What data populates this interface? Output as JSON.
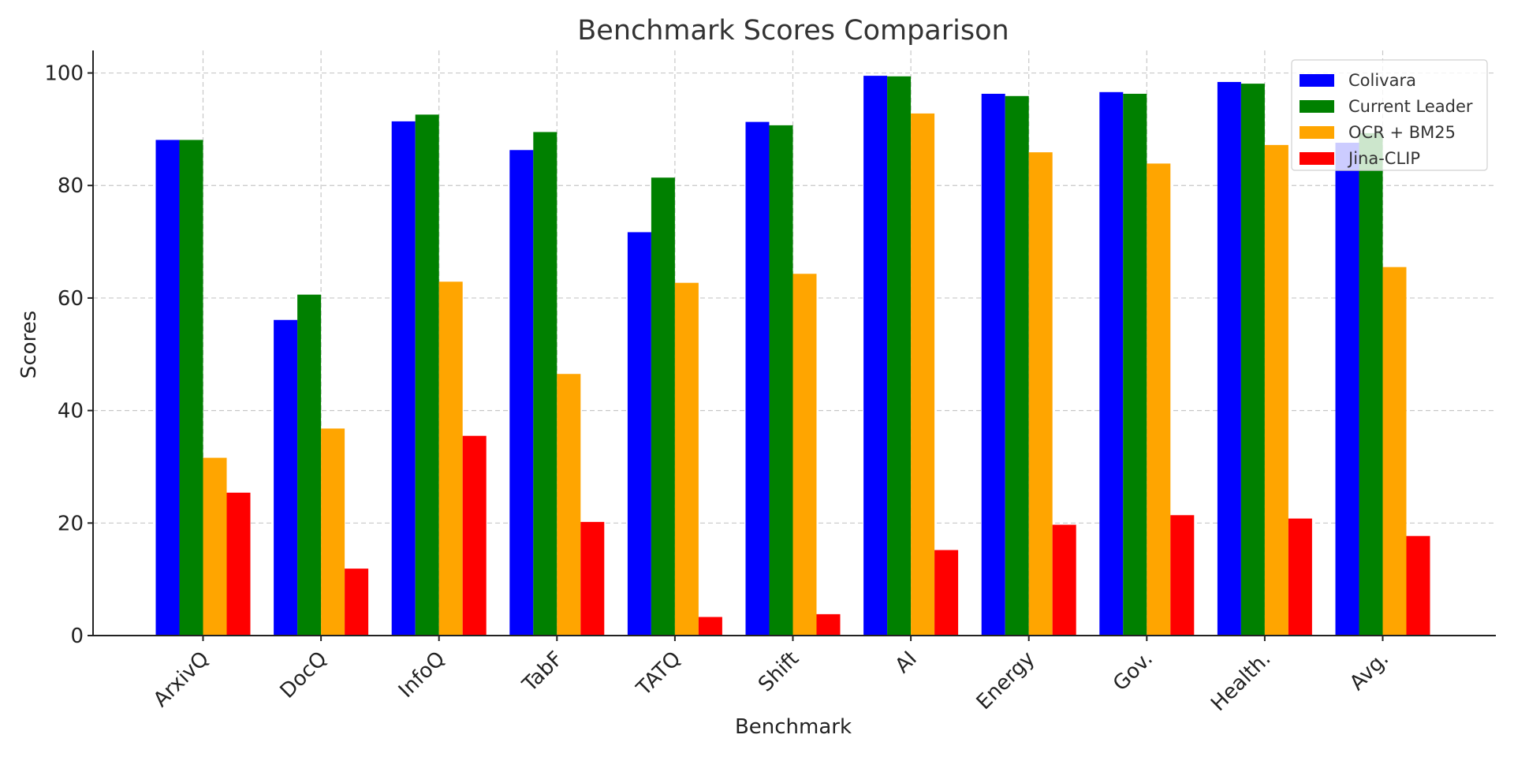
{
  "chart_data": {
    "type": "bar",
    "title": "Benchmark Scores Comparison",
    "xlabel": "Benchmark",
    "ylabel": "Scores",
    "categories": [
      "ArxivQ",
      "DocQ",
      "InfoQ",
      "TabF",
      "TATQ",
      "Shift",
      "AI",
      "Energy",
      "Gov.",
      "Health.",
      "Avg."
    ],
    "series": [
      {
        "name": "Colivara",
        "color": "#0000ff",
        "values": [
          88.1,
          56.1,
          91.4,
          86.3,
          71.7,
          91.3,
          99.5,
          96.3,
          96.6,
          98.4,
          87.6
        ]
      },
      {
        "name": "Current Leader",
        "color": "#008000",
        "values": [
          88.1,
          60.6,
          92.6,
          89.5,
          81.4,
          90.7,
          99.4,
          95.9,
          96.3,
          98.1,
          89.3
        ]
      },
      {
        "name": "OCR + BM25",
        "color": "#ffa500",
        "values": [
          31.6,
          36.8,
          62.9,
          46.5,
          62.7,
          64.3,
          92.8,
          85.9,
          83.9,
          87.2,
          65.5
        ]
      },
      {
        "name": "Jina-CLIP",
        "color": "#ff0000",
        "values": [
          25.4,
          11.9,
          35.5,
          20.2,
          3.3,
          3.8,
          15.2,
          19.7,
          21.4,
          20.8,
          17.7
        ]
      }
    ],
    "ylim": [
      0,
      104
    ],
    "yticks": [
      0,
      20,
      40,
      60,
      80,
      100
    ],
    "grid": true,
    "legend_position": "top-right"
  }
}
